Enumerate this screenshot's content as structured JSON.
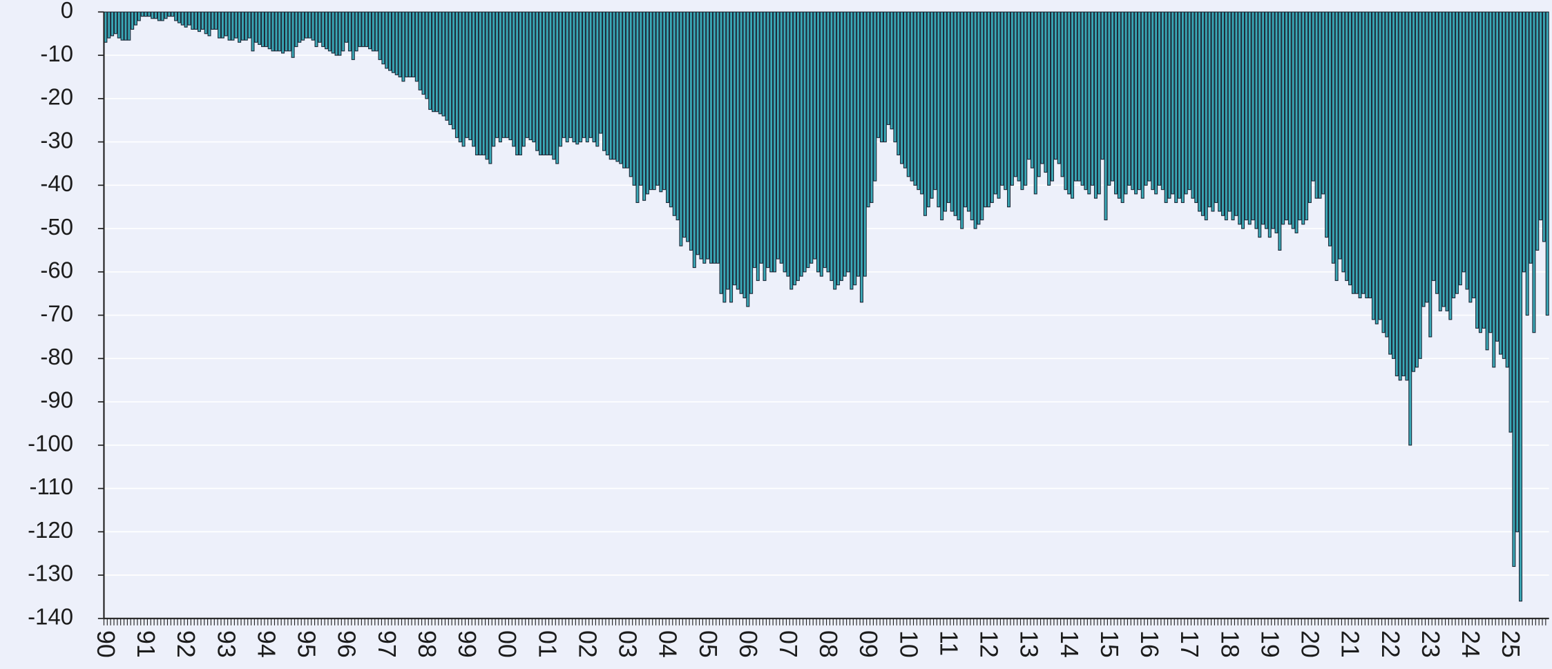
{
  "chart_data": {
    "type": "bar",
    "categories": [
      "90",
      null,
      null,
      null,
      null,
      null,
      null,
      null,
      null,
      null,
      null,
      null,
      "91",
      null,
      null,
      null,
      null,
      null,
      null,
      null,
      null,
      null,
      null,
      null,
      "92",
      null,
      null,
      null,
      null,
      null,
      null,
      null,
      null,
      null,
      null,
      null,
      "93",
      null,
      null,
      null,
      null,
      null,
      null,
      null,
      null,
      null,
      null,
      null,
      "94",
      null,
      null,
      null,
      null,
      null,
      null,
      null,
      null,
      null,
      null,
      null,
      "95",
      null,
      null,
      null,
      null,
      null,
      null,
      null,
      null,
      null,
      null,
      null,
      "96",
      null,
      null,
      null,
      null,
      null,
      null,
      null,
      null,
      null,
      null,
      null,
      "97",
      null,
      null,
      null,
      null,
      null,
      null,
      null,
      null,
      null,
      null,
      null,
      "98",
      null,
      null,
      null,
      null,
      null,
      null,
      null,
      null,
      null,
      null,
      null,
      "99",
      null,
      null,
      null,
      null,
      null,
      null,
      null,
      null,
      null,
      null,
      null,
      "00",
      null,
      null,
      null,
      null,
      null,
      null,
      null,
      null,
      null,
      null,
      null,
      "01",
      null,
      null,
      null,
      null,
      null,
      null,
      null,
      null,
      null,
      null,
      null,
      "02",
      null,
      null,
      null,
      null,
      null,
      null,
      null,
      null,
      null,
      null,
      null,
      "03",
      null,
      null,
      null,
      null,
      null,
      null,
      null,
      null,
      null,
      null,
      null,
      "04",
      null,
      null,
      null,
      null,
      null,
      null,
      null,
      null,
      null,
      null,
      null,
      "05",
      null,
      null,
      null,
      null,
      null,
      null,
      null,
      null,
      null,
      null,
      null,
      "06",
      null,
      null,
      null,
      null,
      null,
      null,
      null,
      null,
      null,
      null,
      null,
      "07",
      null,
      null,
      null,
      null,
      null,
      null,
      null,
      null,
      null,
      null,
      null,
      "08",
      null,
      null,
      null,
      null,
      null,
      null,
      null,
      null,
      null,
      null,
      null,
      "09",
      null,
      null,
      null,
      null,
      null,
      null,
      null,
      null,
      null,
      null,
      null,
      "10",
      null,
      null,
      null,
      null,
      null,
      null,
      null,
      null,
      null,
      null,
      null,
      "11",
      null,
      null,
      null,
      null,
      null,
      null,
      null,
      null,
      null,
      null,
      null,
      "12",
      null,
      null,
      null,
      null,
      null,
      null,
      null,
      null,
      null,
      null,
      null,
      "13",
      null,
      null,
      null,
      null,
      null,
      null,
      null,
      null,
      null,
      null,
      null,
      "14",
      null,
      null,
      null,
      null,
      null,
      null,
      null,
      null,
      null,
      null,
      null,
      "15",
      null,
      null,
      null,
      null,
      null,
      null,
      null,
      null,
      null,
      null,
      null,
      "16",
      null,
      null,
      null,
      null,
      null,
      null,
      null,
      null,
      null,
      null,
      null,
      "17",
      null,
      null,
      null,
      null,
      null,
      null,
      null,
      null,
      null,
      null,
      null,
      "18",
      null,
      null,
      null,
      null,
      null,
      null,
      null,
      null,
      null,
      null,
      null,
      "19",
      null,
      null,
      null,
      null,
      null,
      null,
      null,
      null,
      null,
      null,
      null,
      "20",
      null,
      null,
      null,
      null,
      null,
      null,
      null,
      null,
      null,
      null,
      null,
      "21",
      null,
      null,
      null,
      null,
      null,
      null,
      null,
      null,
      null,
      null,
      null,
      "22",
      null,
      null,
      null,
      null,
      null,
      null,
      null,
      null,
      null,
      null,
      null,
      "23",
      null,
      null,
      null,
      null,
      null,
      null,
      null,
      null,
      null,
      null,
      null,
      "24",
      null,
      null,
      null,
      null,
      null,
      null,
      null,
      null,
      null,
      null,
      null,
      "25",
      null,
      null,
      null,
      null,
      null,
      null,
      null,
      null,
      null,
      null,
      null
    ],
    "values": [
      -7,
      -6,
      -5.5,
      -5,
      -6,
      -6.5,
      -6.5,
      -6.5,
      -4,
      -3,
      -2,
      -1,
      -1,
      -1,
      -1.5,
      -1.5,
      -2,
      -2,
      -1.5,
      -1,
      -1,
      -2,
      -2.5,
      -3,
      -3.5,
      -3,
      -4,
      -4,
      -4.5,
      -4,
      -5,
      -5.5,
      -4,
      -4,
      -6,
      -6,
      -5.5,
      -6.5,
      -6.5,
      -6,
      -7,
      -6.5,
      -6.5,
      -6,
      -9,
      -7,
      -7.5,
      -8,
      -8,
      -8.5,
      -9,
      -9,
      -9,
      -9.5,
      -9,
      -9,
      -10.5,
      -8,
      -7,
      -6.5,
      -6,
      -6,
      -6.5,
      -8,
      -7,
      -8,
      -8.5,
      -9,
      -9.5,
      -10,
      -10,
      -9,
      -7,
      -9,
      -11,
      -9,
      -8,
      -8,
      -8,
      -8.5,
      -9,
      -9,
      -11,
      -12,
      -13,
      -13.5,
      -14,
      -14.5,
      -15,
      -16,
      -15,
      -15,
      -15,
      -16,
      -18,
      -19,
      -20,
      -22.5,
      -23,
      -23,
      -23.5,
      -24,
      -25,
      -26,
      -27,
      -29,
      -30,
      -31,
      -29,
      -29.5,
      -31,
      -33,
      -33,
      -33,
      -34,
      -35,
      -31,
      -29,
      -30,
      -29,
      -29,
      -29.5,
      -31,
      -33,
      -33,
      -31,
      -29,
      -29.5,
      -30,
      -32,
      -33,
      -33,
      -33,
      -33,
      -34,
      -35,
      -31,
      -29,
      -30,
      -29,
      -30,
      -30.5,
      -30,
      -29,
      -30,
      -29,
      -30,
      -31,
      -28,
      -32,
      -33,
      -34,
      -34,
      -34.5,
      -35,
      -36,
      -36,
      -38,
      -40,
      -44,
      -40,
      -43.5,
      -42,
      -41,
      -41,
      -40,
      -41.5,
      -41,
      -44,
      -45,
      -47,
      -48,
      -54,
      -52,
      -53,
      -55,
      -59,
      -56,
      -57,
      -58,
      -57,
      -58,
      -58,
      -58,
      -65,
      -67,
      -64,
      -67,
      -63,
      -64,
      -65,
      -66,
      -68,
      -65,
      -59,
      -62,
      -58,
      -62,
      -59,
      -60,
      -60,
      -57,
      -58,
      -60,
      -61,
      -64,
      -63,
      -62,
      -61,
      -60,
      -59,
      -58,
      -57,
      -60,
      -61,
      -59,
      -60,
      -62,
      -64,
      -63,
      -62,
      -61,
      -60,
      -64,
      -63,
      -61,
      -67,
      -61,
      -45,
      -44,
      -39,
      -29,
      -30,
      -30,
      -26,
      -27,
      -30,
      -33,
      -35,
      -36,
      -38,
      -39,
      -40,
      -41,
      -42,
      -47,
      -45,
      -43,
      -41,
      -45,
      -48,
      -46,
      -44,
      -46,
      -47,
      -48,
      -50,
      -45,
      -46,
      -48,
      -50,
      -49,
      -48,
      -45,
      -45,
      -44,
      -42,
      -43,
      -40,
      -41,
      -45,
      -40,
      -38,
      -39,
      -41,
      -40,
      -34,
      -36,
      -42,
      -38,
      -35,
      -37,
      -40,
      -39,
      -34,
      -35,
      -38,
      -41,
      -42,
      -43,
      -39,
      -39,
      -40,
      -41,
      -42,
      -40,
      -43,
      -42,
      -34,
      -48,
      -40,
      -39,
      -42,
      -43,
      -44,
      -42,
      -40,
      -41,
      -42,
      -41,
      -43,
      -40,
      -39,
      -41,
      -42,
      -40,
      -41,
      -44,
      -43,
      -42,
      -44,
      -43,
      -44,
      -42,
      -41,
      -43,
      -44,
      -46,
      -47,
      -48,
      -45,
      -46,
      -44,
      -46,
      -47,
      -48,
      -46,
      -48,
      -47,
      -49,
      -50,
      -48,
      -49,
      -48,
      -50,
      -52,
      -49,
      -50,
      -52,
      -50,
      -51,
      -55,
      -49,
      -48,
      -49,
      -50,
      -51,
      -48,
      -49,
      -48,
      -44,
      -39,
      -43,
      -43,
      -42,
      -52,
      -54,
      -58,
      -62,
      -57,
      -60,
      -62,
      -63,
      -65,
      -65,
      -66,
      -65,
      -66,
      -66,
      -71,
      -72,
      -71,
      -74,
      -75,
      -79,
      -80,
      -84,
      -85,
      -84,
      -85,
      -100,
      -83,
      -82,
      -80,
      -68,
      -67,
      -75,
      -62,
      -65,
      -69,
      -68,
      -69,
      -71,
      -66,
      -65,
      -63,
      -60,
      -64,
      -67,
      -66,
      -73,
      -74,
      -73,
      -78,
      -74,
      -82,
      -76,
      -79,
      -80,
      -82,
      -97,
      -128,
      -120,
      -136,
      -60,
      -70,
      -58,
      -74,
      -55,
      -48,
      -53,
      -70
    ],
    "color": "#3aaab8",
    "ylim": [
      -140,
      0
    ],
    "yticks": [
      0,
      -10,
      -20,
      -30,
      -40,
      -50,
      -60,
      -70,
      -80,
      -90,
      -100,
      -110,
      -120,
      -130,
      -140
    ],
    "grid": true
  }
}
